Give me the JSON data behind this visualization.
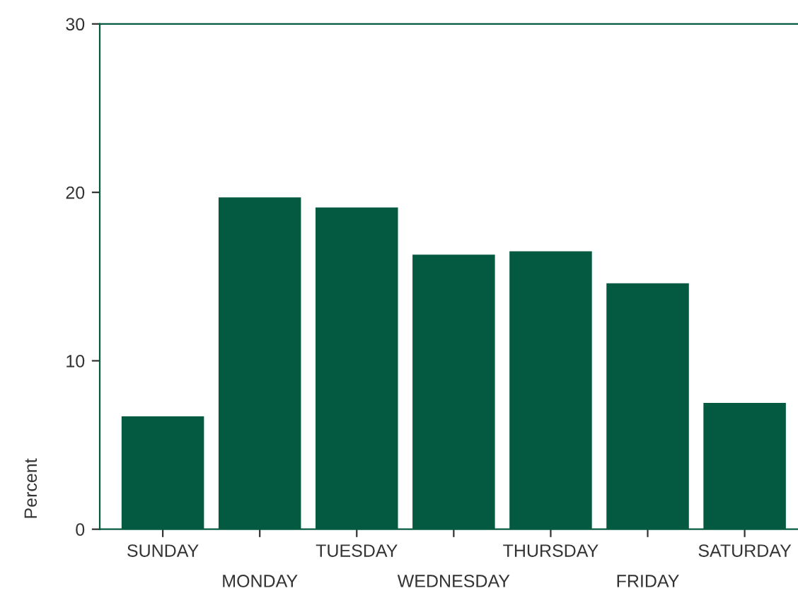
{
  "chart_data": {
    "type": "bar",
    "ylabel": "Percent",
    "categories": [
      "SUNDAY",
      "MONDAY",
      "TUESDAY",
      "WEDNESDAY",
      "THURSDAY",
      "FRIDAY",
      "SATURDAY"
    ],
    "values": [
      6.7,
      19.7,
      19.1,
      16.3,
      16.5,
      14.6,
      7.5
    ],
    "color": "#045a40",
    "ylim": [
      0,
      30
    ],
    "yticks": [
      0,
      10,
      20,
      30
    ],
    "grid": false,
    "legend": false
  }
}
